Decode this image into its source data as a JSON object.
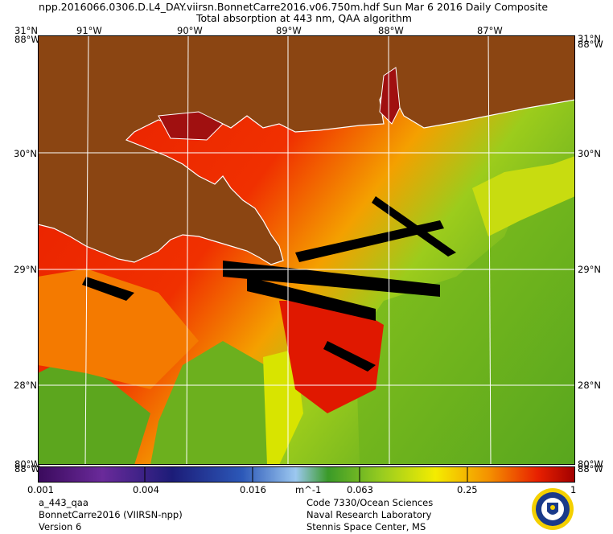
{
  "header": {
    "line1": "npp.2016066.0306.D.L4_DAY.viirsn.BonnetCarre2016.v06.750m.hdf    Sun Mar  6 2016 Daily Composite",
    "line2": "Total absorption at 443 nm, QAA algorithm"
  },
  "map": {
    "lon_labels": [
      "91°W",
      "90°W",
      "89°W",
      "88°W",
      "87°W"
    ],
    "lat_labels": [
      "30°N",
      "29°N",
      "28°N"
    ],
    "corner_top_label": "31°N",
    "corner_side_label": "88°W",
    "corner_bottom_label": "80°W",
    "land_color": "#8b4512",
    "nodata_color": "#000000",
    "grid_color": "#ffffff"
  },
  "colorbar": {
    "ticks": [
      "0.001",
      "0.004",
      "0.016",
      "m^-1",
      "0.063",
      "0.25",
      "1"
    ],
    "colors": [
      "#3a0a5c",
      "#6a2a9a",
      "#1c1c78",
      "#2c58b8",
      "#9cc8f0",
      "#3a9a28",
      "#98cc20",
      "#f4ec00",
      "#f49000",
      "#e82000",
      "#a00000"
    ]
  },
  "footer": {
    "left": [
      "a_443_qaa",
      "BonnetCarre2016 (VIIRSN-npp)",
      "Version 6"
    ],
    "right": [
      "Code 7330/Ocean Sciences",
      "Naval Research Laboratory",
      "Stennis Space Center, MS"
    ]
  }
}
